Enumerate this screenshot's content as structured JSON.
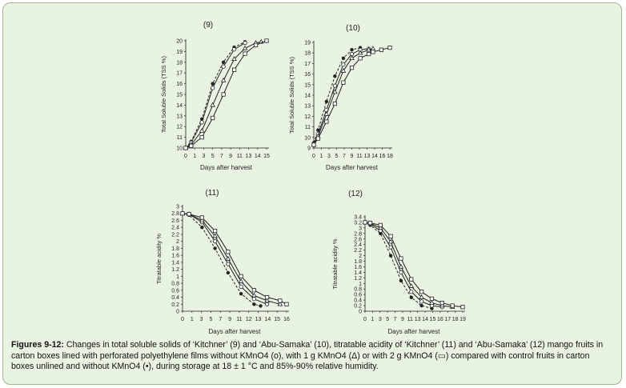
{
  "caption": {
    "label": "Figures 9-12:",
    "text": " Changes in total soluble solids of ‘Kitchner’ (9) and ‘Abu-Samaka’ (10), titratable acidity of ‘Kitchner’ (11) and ‘Abu-Samaka’ (12) mango fruits in carton boxes lined with perforated polyethylene films  without KMnO4 (o), with 1 g KMnO4 (Δ) or with 2 g  KMnO4 (▭) compared with control fruits in carton boxes unlined and without  KMnO4 (•), during storage at 18 ± 1 °C and 85%-90% relative humidity."
  },
  "colors": {
    "background": "#e9f3e2",
    "border": "#9db88f",
    "line": "#222222"
  },
  "chart_data": [
    {
      "type": "line",
      "title": "(9)",
      "xlabel": "Days after harvest",
      "ylabel": "Total Soluble Solids (TSS %)",
      "xticks": [
        "0",
        "1",
        "3",
        "5",
        "7",
        "9",
        "11",
        "13",
        "14",
        "15"
      ],
      "xtick_values": [
        0,
        1,
        3,
        5,
        7,
        9,
        11,
        13,
        14,
        15
      ],
      "xlim": [
        0,
        15
      ],
      "yticks": [
        "10",
        "11",
        "12",
        "13",
        "14",
        "15",
        "16",
        "17",
        "18",
        "19",
        "20"
      ],
      "ylim": [
        10,
        20
      ],
      "series": [
        {
          "marker": "filled-circle",
          "dashed": true,
          "x": [
            0,
            1,
            3,
            5,
            7,
            9,
            11
          ],
          "y": [
            10.0,
            10.6,
            12.7,
            16.0,
            18.0,
            19.4,
            19.9
          ]
        },
        {
          "marker": "open-circle",
          "dashed": false,
          "x": [
            0,
            1,
            3,
            5,
            7,
            9,
            11
          ],
          "y": [
            10.0,
            10.5,
            12.4,
            15.6,
            17.6,
            19.2,
            19.8
          ]
        },
        {
          "marker": "triangle",
          "dashed": false,
          "x": [
            0,
            1,
            3,
            5,
            7,
            9,
            11,
            13,
            14
          ],
          "y": [
            10.0,
            10.3,
            11.6,
            14.0,
            16.3,
            18.3,
            19.3,
            19.8,
            19.9
          ]
        },
        {
          "marker": "square",
          "dashed": false,
          "x": [
            0,
            1,
            3,
            5,
            7,
            9,
            11,
            13,
            15
          ],
          "y": [
            10.0,
            10.2,
            11.0,
            12.8,
            15.0,
            17.3,
            18.8,
            19.6,
            20.0
          ]
        }
      ]
    },
    {
      "type": "line",
      "title": "(10)",
      "xlabel": "Days after harvest",
      "ylabel": "Total Soluble Solids (TSS %)",
      "xticks": [
        "0",
        "1",
        "3",
        "5",
        "7",
        "9",
        "11",
        "13",
        "14",
        "16",
        "18"
      ],
      "xtick_values": [
        0,
        1,
        3,
        5,
        7,
        9,
        11,
        13,
        14,
        16,
        18
      ],
      "xlim": [
        0,
        18
      ],
      "yticks": [
        "9",
        "10",
        "11",
        "12",
        "13",
        "14",
        "15",
        "16",
        "17",
        "18",
        "19"
      ],
      "ylim": [
        9,
        19
      ],
      "series": [
        {
          "marker": "filled-circle",
          "dashed": true,
          "x": [
            0,
            1,
            3,
            5,
            7,
            9,
            11
          ],
          "y": [
            9.5,
            10.7,
            13.4,
            15.8,
            17.5,
            18.3,
            18.5
          ]
        },
        {
          "marker": "open-circle",
          "dashed": false,
          "x": [
            0,
            1,
            3,
            5,
            7,
            9,
            11,
            13
          ],
          "y": [
            9.4,
            10.3,
            12.6,
            14.9,
            16.9,
            17.9,
            18.3,
            18.4
          ]
        },
        {
          "marker": "triangle",
          "dashed": false,
          "x": [
            0,
            1,
            3,
            5,
            7,
            9,
            11,
            13,
            14
          ],
          "y": [
            9.3,
            10.1,
            12.2,
            14.3,
            16.3,
            17.5,
            18.0,
            18.3,
            18.4
          ]
        },
        {
          "marker": "square",
          "dashed": false,
          "x": [
            0,
            1,
            3,
            5,
            7,
            9,
            11,
            13,
            14,
            16,
            18
          ],
          "y": [
            9.3,
            9.9,
            11.5,
            13.2,
            15.2,
            16.6,
            17.5,
            17.9,
            18.1,
            18.3,
            18.5
          ]
        }
      ]
    },
    {
      "type": "line",
      "title": "(11)",
      "xlabel": "Days after harvest",
      "ylabel": "Titratable acidity %",
      "xticks": [
        "0",
        "1",
        "3",
        "5",
        "7",
        "9",
        "11",
        "12",
        "13",
        "14",
        "15",
        "16"
      ],
      "xtick_values": [
        0,
        1,
        3,
        5,
        7,
        9,
        11,
        12,
        13,
        14,
        15,
        16
      ],
      "xlim": [
        0,
        16
      ],
      "yticks": [
        "0",
        "0.2",
        "0.4",
        "0.6",
        "0.8",
        "1",
        "1.2",
        "1.4",
        "1.6",
        "1.8",
        "2",
        "2.2",
        "2.4",
        "2.6",
        "2.8",
        "3"
      ],
      "ylim": [
        0,
        3
      ],
      "series": [
        {
          "marker": "filled-circle",
          "dashed": true,
          "x": [
            0,
            1,
            3,
            5,
            7,
            9,
            11,
            12
          ],
          "y": [
            2.8,
            2.75,
            2.4,
            1.8,
            1.1,
            0.5,
            0.2,
            0.15
          ]
        },
        {
          "marker": "open-circle",
          "dashed": false,
          "x": [
            0,
            1,
            3,
            5,
            7,
            9,
            11,
            13
          ],
          "y": [
            2.8,
            2.77,
            2.55,
            2.0,
            1.35,
            0.7,
            0.35,
            0.2
          ]
        },
        {
          "marker": "triangle",
          "dashed": false,
          "x": [
            0,
            1,
            3,
            5,
            7,
            9,
            11,
            13,
            15
          ],
          "y": [
            2.8,
            2.78,
            2.6,
            2.15,
            1.5,
            0.85,
            0.45,
            0.3,
            0.2
          ]
        },
        {
          "marker": "square",
          "dashed": false,
          "x": [
            0,
            1,
            3,
            5,
            7,
            9,
            11,
            13,
            15,
            16
          ],
          "y": [
            2.8,
            2.78,
            2.68,
            2.3,
            1.7,
            1.0,
            0.6,
            0.4,
            0.3,
            0.2
          ]
        }
      ]
    },
    {
      "type": "line",
      "title": "(12)",
      "xlabel": "Days after harvest",
      "ylabel": "Titratable acidity %",
      "xticks": [
        "0",
        "1",
        "3",
        "5",
        "7",
        "9",
        "11",
        "13",
        "14",
        "15",
        "16",
        "17",
        "18",
        "19"
      ],
      "xtick_values": [
        0,
        1,
        3,
        5,
        7,
        9,
        11,
        13,
        14,
        15,
        16,
        17,
        18,
        19
      ],
      "xlim": [
        0,
        19
      ],
      "yticks": [
        "0",
        "0.2",
        "0.4",
        "0.6",
        "0.8",
        "1",
        "1.2",
        "1.4",
        "1.6",
        "1.8",
        "2",
        "2.2",
        "2.4",
        "2.6",
        "2.8",
        "3",
        "3.2",
        "3.4"
      ],
      "ylim": [
        0,
        3.4
      ],
      "series": [
        {
          "marker": "filled-circle",
          "dashed": true,
          "x": [
            0,
            1,
            3,
            5,
            7,
            9,
            11,
            13
          ],
          "y": [
            3.2,
            3.1,
            2.8,
            2.0,
            1.1,
            0.5,
            0.2,
            0.1
          ]
        },
        {
          "marker": "open-circle",
          "dashed": false,
          "x": [
            0,
            1,
            3,
            5,
            7,
            9,
            11,
            13,
            15
          ],
          "y": [
            3.2,
            3.15,
            2.9,
            2.3,
            1.4,
            0.7,
            0.35,
            0.2,
            0.15
          ]
        },
        {
          "marker": "triangle",
          "dashed": false,
          "x": [
            0,
            1,
            3,
            5,
            7,
            9,
            11,
            13,
            15,
            17
          ],
          "y": [
            3.2,
            3.17,
            3.0,
            2.5,
            1.6,
            0.9,
            0.5,
            0.3,
            0.2,
            0.15
          ]
        },
        {
          "marker": "square",
          "dashed": false,
          "x": [
            0,
            1,
            3,
            5,
            7,
            9,
            11,
            13,
            15,
            17,
            19
          ],
          "y": [
            3.2,
            3.18,
            3.1,
            2.7,
            1.9,
            1.15,
            0.7,
            0.45,
            0.3,
            0.2,
            0.15
          ]
        }
      ]
    }
  ]
}
